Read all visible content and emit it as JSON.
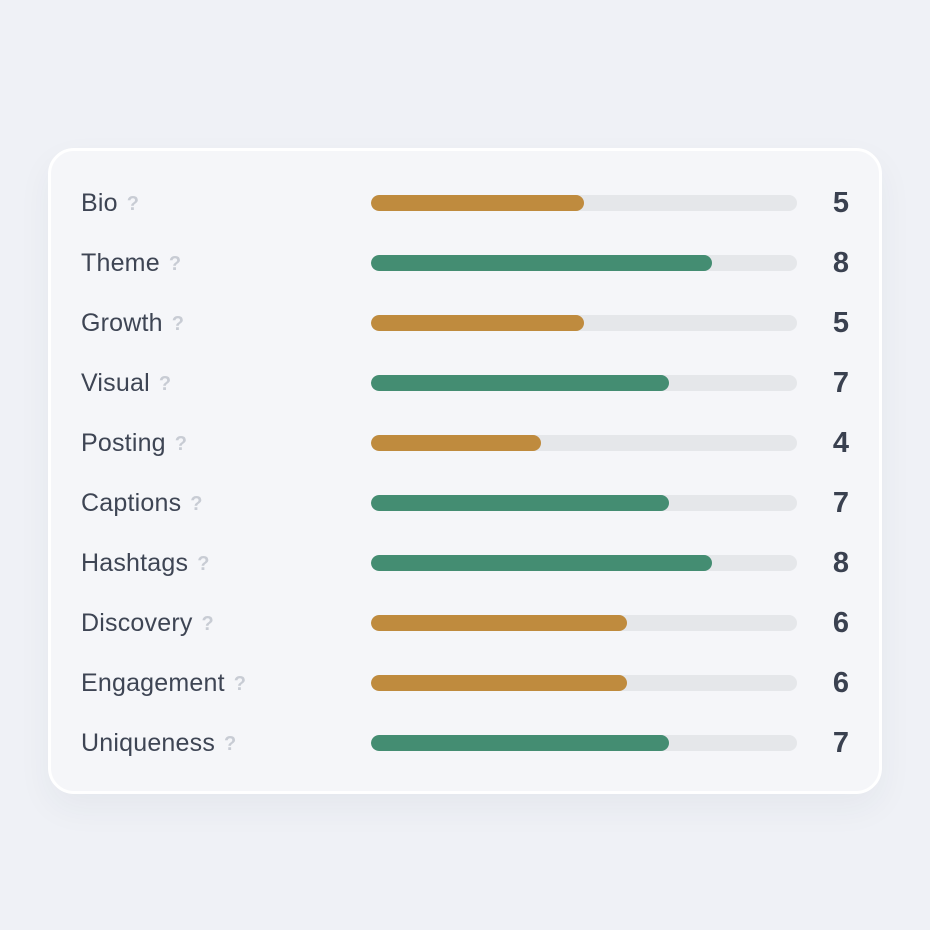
{
  "chart_data": {
    "type": "bar",
    "orientation": "horizontal",
    "title": "",
    "categories": [
      "Bio",
      "Theme",
      "Growth",
      "Visual",
      "Posting",
      "Captions",
      "Hashtags",
      "Discovery",
      "Engagement",
      "Uniqueness"
    ],
    "values": [
      5,
      8,
      5,
      7,
      4,
      7,
      8,
      6,
      6,
      7
    ],
    "value_range": [
      0,
      10
    ],
    "data_labels": [
      "5",
      "8",
      "5",
      "7",
      "4",
      "7",
      "8",
      "6",
      "6",
      "7"
    ],
    "bar_color_names": [
      "gold",
      "green",
      "gold",
      "green",
      "gold",
      "green",
      "green",
      "gold",
      "gold",
      "green"
    ],
    "legend": "none",
    "grid": false
  },
  "scale": {
    "min": 0,
    "max": 10
  },
  "help_icon": "?",
  "colors": {
    "gold": "#bf8b3e",
    "green": "#448d72",
    "track": "#e5e7ea",
    "page_bg": "#eff1f6",
    "card_bg": "#f5f6f9",
    "card_border": "#ffffff",
    "label_text": "#3e4554",
    "score_text": "#3a4150",
    "help_icon": "#c8ccd4"
  },
  "metrics": [
    {
      "label": "Bio",
      "score": 5,
      "color": "gold"
    },
    {
      "label": "Theme",
      "score": 8,
      "color": "green"
    },
    {
      "label": "Growth",
      "score": 5,
      "color": "gold"
    },
    {
      "label": "Visual",
      "score": 7,
      "color": "green"
    },
    {
      "label": "Posting",
      "score": 4,
      "color": "gold"
    },
    {
      "label": "Captions",
      "score": 7,
      "color": "green"
    },
    {
      "label": "Hashtags",
      "score": 8,
      "color": "green"
    },
    {
      "label": "Discovery",
      "score": 6,
      "color": "gold"
    },
    {
      "label": "Engagement",
      "score": 6,
      "color": "gold"
    },
    {
      "label": "Uniqueness",
      "score": 7,
      "color": "green"
    }
  ]
}
